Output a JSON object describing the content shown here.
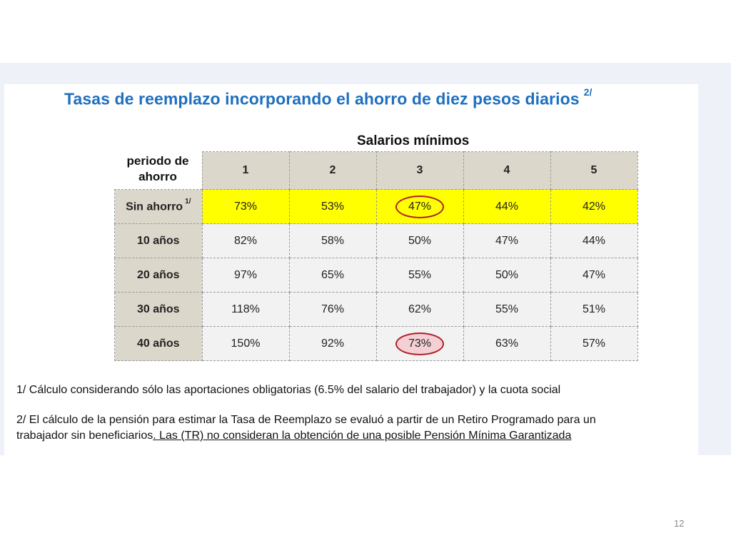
{
  "title": "Tasas de reemplazo incorporando el ahorro de diez pesos diarios",
  "title_note": "2/",
  "column_group_label": "Salarios mínimos",
  "row_header_label": "periodo de ahorro",
  "chart_data": {
    "type": "table",
    "columns": [
      "1",
      "2",
      "3",
      "4",
      "5"
    ],
    "rows": [
      {
        "label": "Sin ahorro",
        "note": "1/",
        "values": [
          "73%",
          "53%",
          "47%",
          "44%",
          "42%"
        ],
        "highlighted": true
      },
      {
        "label": "10 años",
        "values": [
          "82%",
          "58%",
          "50%",
          "47%",
          "44%"
        ]
      },
      {
        "label": "20 años",
        "values": [
          "97%",
          "65%",
          "55%",
          "50%",
          "47%"
        ]
      },
      {
        "label": "30 años",
        "values": [
          "118%",
          "76%",
          "62%",
          "55%",
          "51%"
        ]
      },
      {
        "label": "40 años",
        "values": [
          "150%",
          "92%",
          "73%",
          "63%",
          "57%"
        ]
      }
    ],
    "circled_cells": [
      "Sin ahorro / 3",
      "40 años / 3"
    ],
    "colors": {
      "highlight_row": "#ffff00",
      "header_fill": "#dcd7cb",
      "cell_fill": "#f2f2f2",
      "circle": "#b0202a",
      "title": "#1f6fbf"
    }
  },
  "notes": {
    "note1": "1/ Cálculo considerando sólo las aportaciones obligatorias  (6.5% del salario del trabajador) y la cuota social",
    "note2_line1": "2/ El cálculo de la pensión para estimar la Tasa de Reemplazo se evaluó a partir de un Retiro Programado para un",
    "note2_line2_plain": "trabajador sin beneficiarios",
    "note2_line2_underlined": ". Las (TR) no consideran la obtención de una posible Pensión Mínima Garantizada"
  },
  "page_number": "12"
}
